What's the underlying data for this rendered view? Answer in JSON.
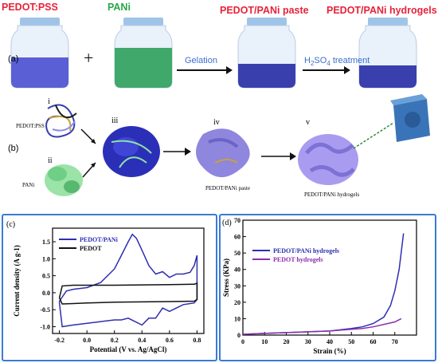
{
  "panel_a": {
    "tag": "(a)",
    "labels": {
      "pedot_pss": "PEDOT:PSS",
      "pani": "PANi",
      "paste": "PEDOT/PANi paste",
      "hydrogels": "PEDOT/PANi hydrogels"
    },
    "plus": "+",
    "gelation": "Gelation",
    "h2so4_prefix": "H",
    "h2so4_sub1": "2",
    "h2so4_mid": "SO",
    "h2so4_sub2": "4",
    "h2so4_suffix": " treatment",
    "colors": {
      "pedot": "#5b5fd6",
      "pani": "#3fa86a",
      "arrow": "#3b6fd0"
    }
  },
  "panel_b": {
    "tag": "(b)",
    "steps": [
      "i",
      "ii",
      "iii",
      "iv",
      "v"
    ],
    "pedot_pss": "PEDOT:PSS",
    "pani": "PANi",
    "paste": "PEDOT/PANi paste",
    "hydrogels": "PEDOT/PANi hydrogels"
  },
  "chart_data": [
    {
      "panel": "(c)",
      "type": "line",
      "xlabel": "Potential (V vs. Ag/AgCl)",
      "ylabel": "Current density (A g-1)",
      "xlim": [
        -0.25,
        0.85
      ],
      "ylim": [
        -1.2,
        1.9
      ],
      "xticks": [
        "-0.2",
        "0.0",
        "0.2",
        "0.4",
        "0.6",
        "0.8"
      ],
      "yticks": [
        "-1.0",
        "-0.5",
        "0.0",
        "0.5",
        "1.0",
        "1.5"
      ],
      "series": [
        {
          "name": "PEDOT/PANi",
          "color": "#2d2fb0",
          "x": [
            -0.2,
            -0.15,
            -0.1,
            0.0,
            0.1,
            0.2,
            0.25,
            0.3,
            0.33,
            0.36,
            0.4,
            0.45,
            0.5,
            0.55,
            0.6,
            0.65,
            0.7,
            0.75,
            0.78,
            0.8,
            0.8,
            0.78,
            0.7,
            0.65,
            0.6,
            0.55,
            0.5,
            0.45,
            0.4,
            0.35,
            0.3,
            0.25,
            0.2,
            0.1,
            0.0,
            -0.1,
            -0.18,
            -0.2
          ],
          "y": [
            -0.25,
            0.05,
            0.1,
            0.15,
            0.3,
            0.7,
            1.1,
            1.5,
            1.72,
            1.6,
            1.25,
            0.8,
            0.55,
            0.62,
            0.45,
            0.55,
            0.55,
            0.6,
            0.8,
            1.1,
            -0.2,
            -0.3,
            -0.35,
            -0.45,
            -0.55,
            -0.45,
            -0.75,
            -0.75,
            -0.95,
            -0.85,
            -0.75,
            -0.8,
            -0.8,
            -0.85,
            -0.9,
            -0.95,
            -1.0,
            -0.3
          ]
        },
        {
          "name": "PEDOT",
          "color": "#111111",
          "x": [
            -0.2,
            -0.18,
            -0.1,
            0.0,
            0.2,
            0.4,
            0.6,
            0.78,
            0.8,
            0.8,
            0.78,
            0.6,
            0.4,
            0.2,
            0.0,
            -0.1,
            -0.18,
            -0.2
          ],
          "y": [
            -0.15,
            0.2,
            0.22,
            0.22,
            0.22,
            0.23,
            0.24,
            0.25,
            0.28,
            -0.2,
            -0.25,
            -0.26,
            -0.27,
            -0.28,
            -0.3,
            -0.32,
            -0.33,
            -0.15
          ]
        }
      ]
    },
    {
      "panel": "(d)",
      "type": "line",
      "xlabel": "Strain (%)",
      "ylabel": "Stress (KPa)",
      "xlim": [
        0,
        80
      ],
      "ylim": [
        0,
        70
      ],
      "xticks": [
        "0",
        "10",
        "20",
        "30",
        "40",
        "50",
        "60",
        "70"
      ],
      "yticks": [
        "0",
        "10",
        "20",
        "30",
        "40",
        "50",
        "60",
        "70"
      ],
      "series": [
        {
          "name": "PEDOT/PANi hydrogels",
          "color": "#2d2fb0",
          "x": [
            0,
            10,
            20,
            30,
            40,
            50,
            55,
            60,
            65,
            68,
            70,
            72,
            74
          ],
          "y": [
            0.5,
            1,
            1.5,
            2,
            2.5,
            4,
            5,
            7,
            11,
            18,
            27,
            40,
            62
          ]
        },
        {
          "name": "PEDOT hydrogels",
          "color": "#8a2fae",
          "x": [
            0,
            10,
            20,
            30,
            40,
            50,
            55,
            60,
            65,
            70,
            73
          ],
          "y": [
            0.5,
            1,
            1.5,
            2,
            2.5,
            3.5,
            4,
            5,
            6.5,
            8,
            10
          ]
        }
      ]
    }
  ]
}
